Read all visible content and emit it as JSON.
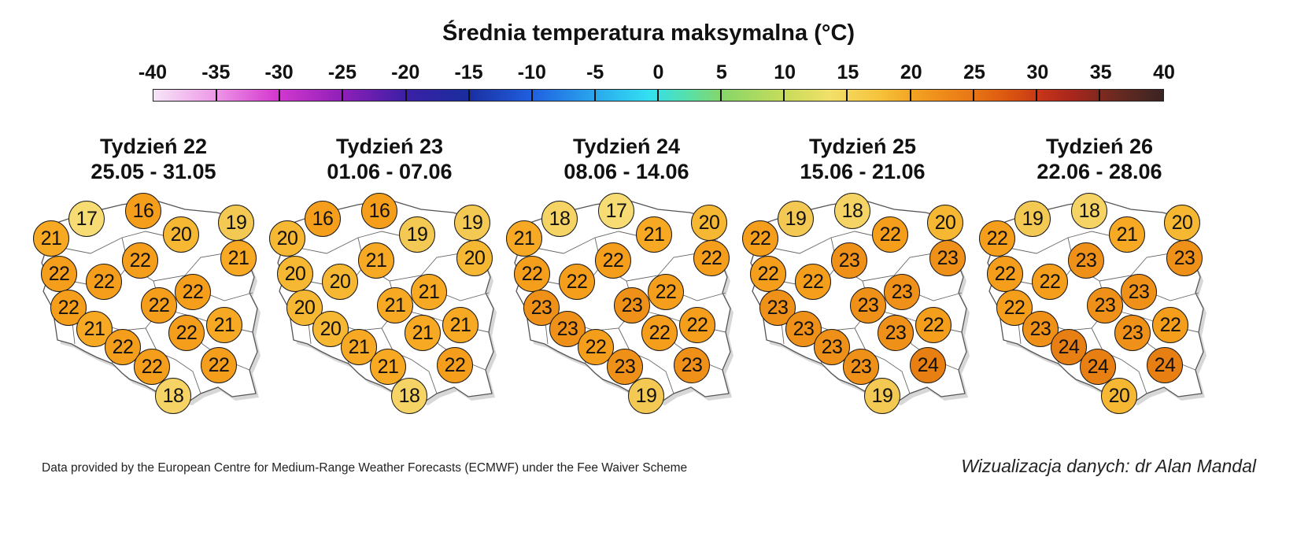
{
  "scale": {
    "title": "Średnia temperatura maksymalna (°C)",
    "ticks": [
      "-40",
      "-35",
      "-30",
      "-25",
      "-20",
      "-15",
      "-10",
      "-5",
      "0",
      "5",
      "10",
      "15",
      "20",
      "25",
      "30",
      "35",
      "40"
    ]
  },
  "colors": {
    "t17": "#f6dc72",
    "t18": "#f5d465",
    "t19": "#f3c853",
    "t20": "#f6b733",
    "t21": "#f7a923",
    "t22": "#f59e1c",
    "t23": "#ef9118",
    "t24": "#e87f12"
  },
  "panels": [
    {
      "title": "Tydzień 22",
      "dates": "25.05 - 31.05",
      "values": [
        17,
        16,
        21,
        20,
        19,
        21,
        22,
        22,
        22,
        22,
        22,
        22,
        21,
        21,
        22,
        22,
        22,
        22,
        18
      ]
    },
    {
      "title": "Tydzień 23",
      "dates": "01.06 - 07.06",
      "values": [
        16,
        16,
        20,
        19,
        19,
        20,
        20,
        20,
        21,
        21,
        20,
        21,
        21,
        20,
        21,
        21,
        21,
        22,
        18
      ]
    },
    {
      "title": "Tydzień 24",
      "dates": "08.06 - 14.06",
      "values": [
        18,
        17,
        21,
        21,
        20,
        22,
        22,
        22,
        22,
        22,
        23,
        23,
        22,
        23,
        22,
        22,
        23,
        23,
        19
      ]
    },
    {
      "title": "Tydzień 25",
      "dates": "15.06 - 21.06",
      "values": [
        19,
        18,
        22,
        22,
        20,
        23,
        22,
        22,
        23,
        23,
        23,
        23,
        22,
        23,
        23,
        23,
        23,
        24,
        19
      ]
    },
    {
      "title": "Tydzień 26",
      "dates": "22.06 - 28.06",
      "values": [
        19,
        18,
        22,
        21,
        20,
        23,
        22,
        22,
        23,
        23,
        22,
        23,
        22,
        23,
        24,
        23,
        24,
        24,
        20
      ]
    }
  ],
  "credits": {
    "left": "Data provided by the European Centre for Medium-Range Weather Forecasts (ECMWF) under the Fee Waiver Scheme",
    "right": "Wizualizacja danych: dr Alan Mandal"
  }
}
